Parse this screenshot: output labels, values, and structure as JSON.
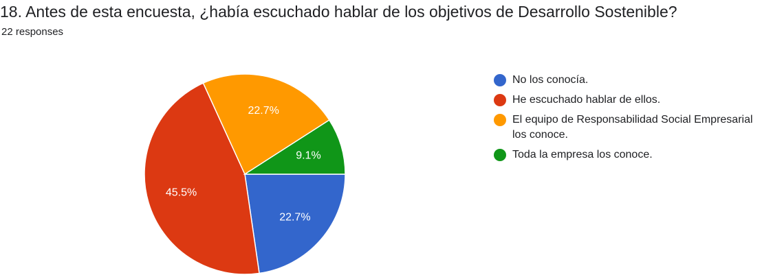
{
  "question": {
    "title": "18. Antes de esta encuesta, ¿había escuchado hablar de los objetivos de Desarrollo Sostenible?",
    "responses": "22 responses"
  },
  "chart_data": {
    "type": "pie",
    "title": "",
    "categories": [
      "No los conocía.",
      "He escuchado hablar de ellos.",
      "El equipo de Responsabilidad Social Empresarial los conoce.",
      "Toda la empresa los conoce."
    ],
    "values": [
      22.7,
      45.5,
      22.7,
      9.1
    ],
    "value_labels": [
      "22.7%",
      "45.5%",
      "22.7%",
      "9.1%"
    ],
    "colors": [
      "#3366cc",
      "#dc3912",
      "#ff9900",
      "#109618"
    ],
    "legend_position": "right"
  },
  "legend": {
    "items": [
      {
        "label": "No los conocía.",
        "color": "#3366cc"
      },
      {
        "label": "He escuchado hablar de ellos.",
        "color": "#dc3912"
      },
      {
        "label": "El equipo de Responsabilidad Social Empresarial los conoce.",
        "color": "#ff9900"
      },
      {
        "label": "Toda la empresa los conoce.",
        "color": "#109618"
      }
    ]
  }
}
